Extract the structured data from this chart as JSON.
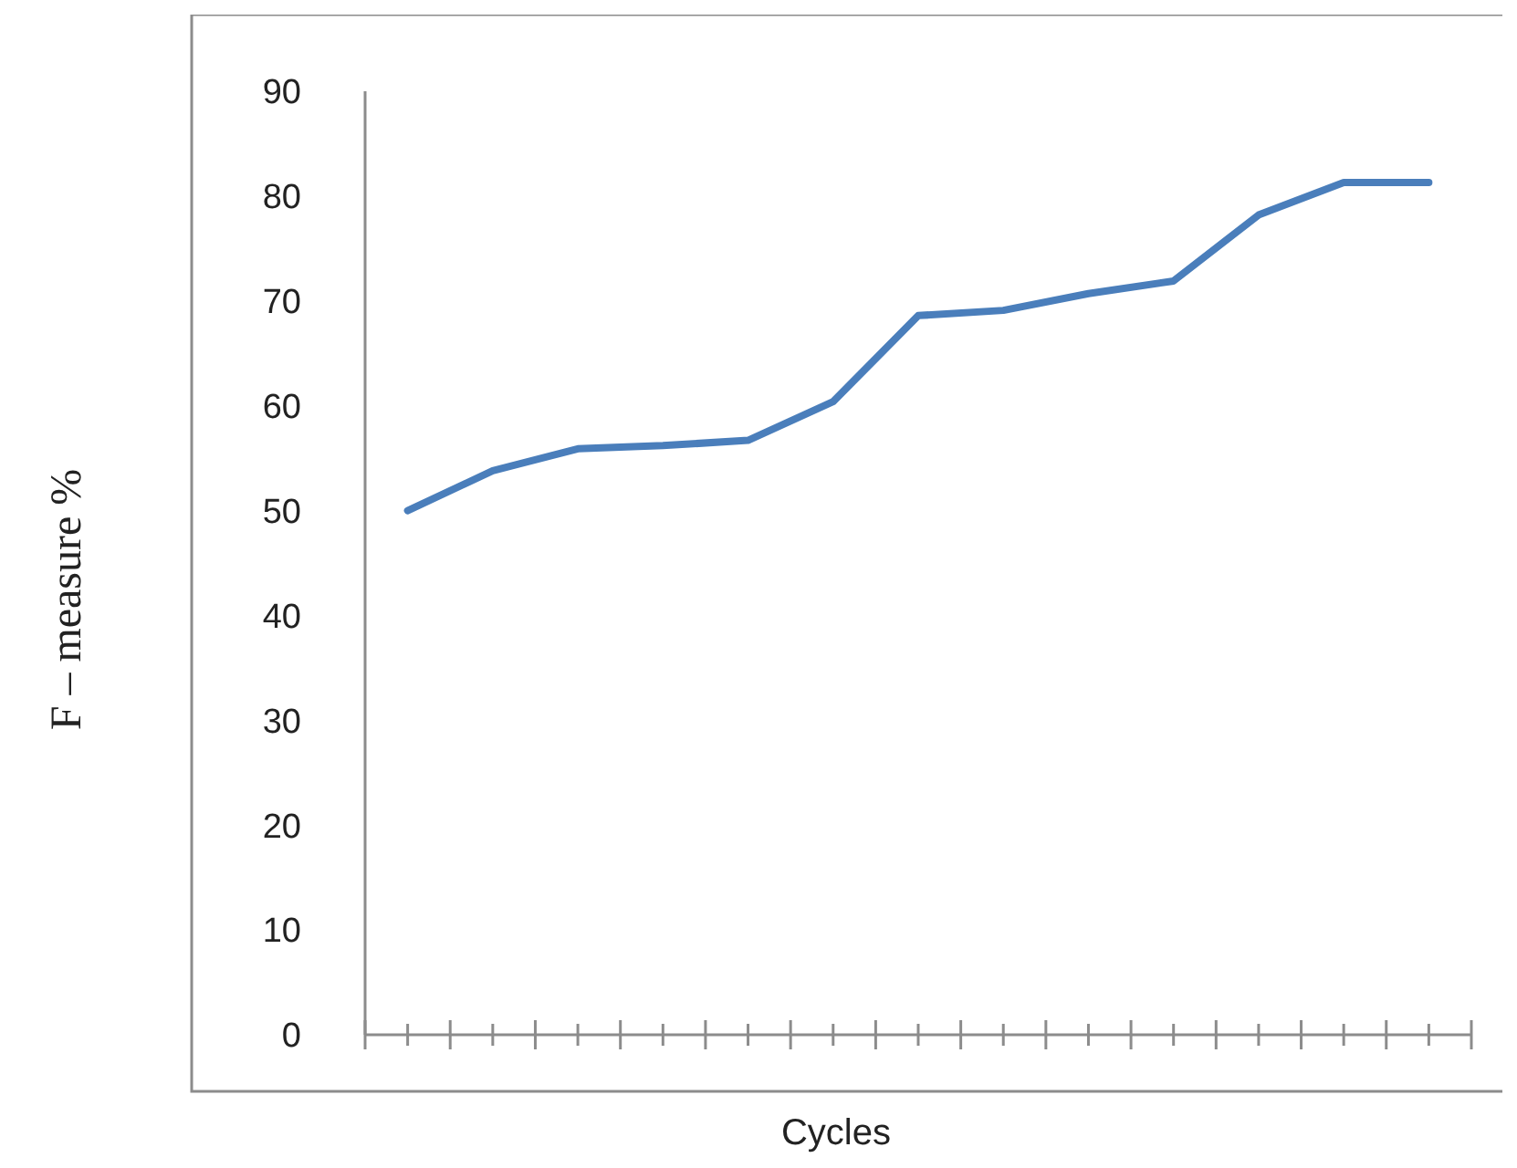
{
  "chart_data": {
    "type": "line",
    "xlabel": "Cycles",
    "ylabel": "F – measure %",
    "categories": [
      null,
      null,
      null,
      null,
      null,
      null,
      null,
      null,
      null,
      null,
      null,
      null,
      null
    ],
    "series": [
      {
        "color": "#4a7ebb",
        "values": [
          50,
          53.8,
          55.9,
          56.2,
          56.7,
          60.4,
          68.6,
          69.1,
          70.7,
          71.9,
          78.2,
          81.3,
          81.3
        ]
      }
    ],
    "ylim": [
      0,
      90
    ],
    "yticks": [
      0,
      10,
      20,
      30,
      40,
      50,
      60,
      70,
      80,
      90
    ],
    "grid": false,
    "marker": "none",
    "line_style": "solid"
  }
}
